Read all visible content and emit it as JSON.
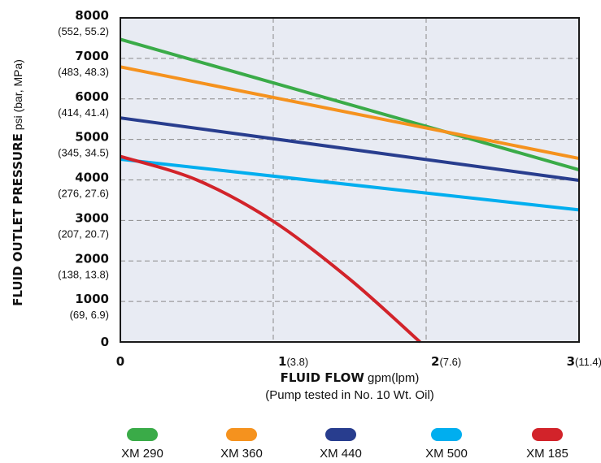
{
  "chart_data": {
    "type": "line",
    "title": "",
    "ylabel": {
      "bold": "FLUID OUTLET PRESSURE",
      "normal": " psi (bar, MPa)"
    },
    "xlabel": {
      "bold": "FLUID FLOW",
      "normal": " gpm(lpm)"
    },
    "xnote": "(Pump tested in No. 10 Wt. Oil)",
    "xlim": [
      0,
      3
    ],
    "ylim": [
      0,
      8000
    ],
    "grid": true,
    "plot_background": "#e8ebf3",
    "yticks": [
      {
        "value": 8000,
        "main": "8000",
        "sub": "(552, 55.2)"
      },
      {
        "value": 7000,
        "main": "7000",
        "sub": "(483, 48.3)"
      },
      {
        "value": 6000,
        "main": "6000",
        "sub": "(414, 41.4)"
      },
      {
        "value": 5000,
        "main": "5000",
        "sub": "(345, 34.5)"
      },
      {
        "value": 4000,
        "main": "4000",
        "sub": "(276, 27.6)"
      },
      {
        "value": 3000,
        "main": "3000",
        "sub": "(207, 20.7)"
      },
      {
        "value": 2000,
        "main": "2000",
        "sub": "(138, 13.8)"
      },
      {
        "value": 1000,
        "main": "1000",
        "sub": "(69, 6.9)"
      },
      {
        "value": 0,
        "main": "0",
        "sub": ""
      }
    ],
    "xticks": [
      {
        "value": 0,
        "main": "0",
        "sub": ""
      },
      {
        "value": 1,
        "main": "1",
        "sub": "(3.8)"
      },
      {
        "value": 2,
        "main": "2",
        "sub": "(7.6)"
      },
      {
        "value": 3,
        "main": "3",
        "sub": "(11.4)"
      }
    ],
    "legend_position": "bottom",
    "series": [
      {
        "name": "XM 290",
        "color": "#3aab48",
        "x": [
          0,
          3
        ],
        "y": [
          7470,
          4250
        ]
      },
      {
        "name": "XM 360",
        "color": "#f5921e",
        "x": [
          0,
          3
        ],
        "y": [
          6790,
          4530
        ]
      },
      {
        "name": "XM 440",
        "color": "#283d8e",
        "x": [
          0,
          3
        ],
        "y": [
          5530,
          3990
        ]
      },
      {
        "name": "XM 500",
        "color": "#00aeef",
        "x": [
          0,
          3
        ],
        "y": [
          4510,
          3260
        ]
      },
      {
        "name": "XM 185",
        "color": "#d2232a",
        "x": [
          0,
          0.5,
          1.0,
          1.5,
          1.96
        ],
        "y": [
          4580,
          4000,
          2980,
          1550,
          0
        ]
      }
    ]
  }
}
